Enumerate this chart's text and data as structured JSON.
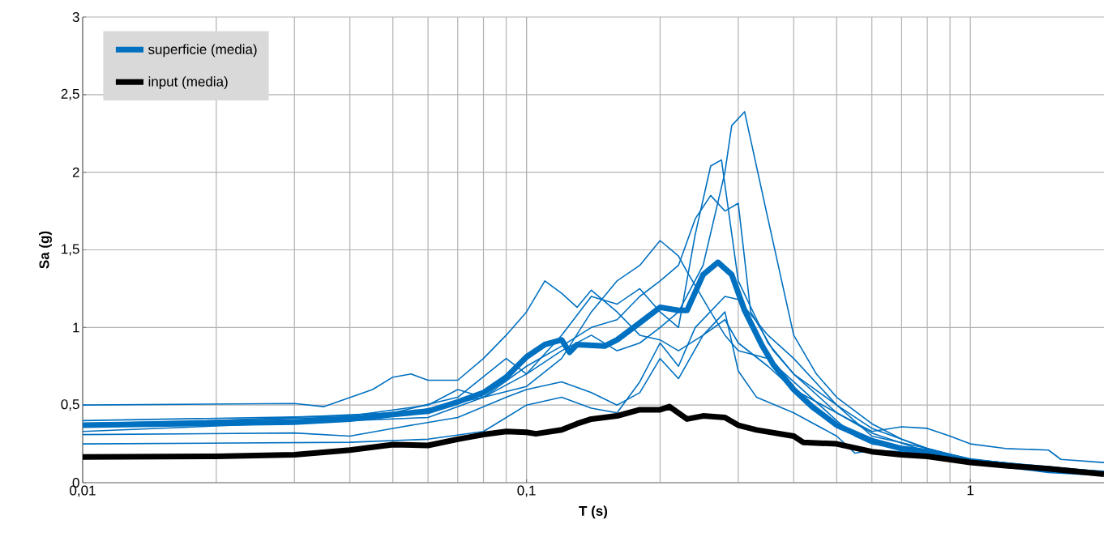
{
  "chart_data": {
    "type": "line",
    "xlabel": "T (s)",
    "ylabel": "Sa (g)",
    "log": "x",
    "grid": true,
    "legend": "top left",
    "xlim": [
      0.01,
      2
    ],
    "ylim": [
      0,
      3
    ],
    "xticks": [
      {
        "value": 0.01,
        "label": "0,01"
      },
      {
        "value": 0.1,
        "label": "0,1"
      },
      1
    ],
    "yticks": [
      0,
      {
        "value": 0.5,
        "label": "0,5"
      },
      1,
      {
        "value": 1.5,
        "label": "1,5"
      },
      2,
      {
        "value": 2.5,
        "label": "2,5"
      },
      3
    ],
    "series": [
      {
        "color": "#0070c0",
        "x": [
          0.01,
          0.03,
          0.035,
          0.045,
          0.05,
          0.055,
          0.06,
          0.07,
          0.08,
          0.09,
          0.1,
          0.11,
          0.12,
          0.13,
          0.14,
          0.16,
          0.18,
          0.2,
          0.22,
          0.25,
          0.28,
          0.3,
          0.35,
          0.4,
          0.5,
          0.6,
          0.7,
          0.8,
          0.9,
          1.0,
          1.2,
          1.5,
          1.6,
          2
        ],
        "values": [
          0.5,
          0.51,
          0.49,
          0.6,
          0.68,
          0.7,
          0.66,
          0.66,
          0.8,
          0.95,
          1.1,
          1.3,
          1.22,
          1.13,
          1.24,
          1.1,
          0.95,
          0.92,
          0.85,
          0.95,
          1.05,
          0.9,
          0.75,
          0.6,
          0.45,
          0.33,
          0.36,
          0.35,
          0.3,
          0.25,
          0.22,
          0.21,
          0.15,
          0.13
        ]
      },
      {
        "color": "#0070c0",
        "x": [
          0.01,
          0.05,
          0.08,
          0.1,
          0.12,
          0.14,
          0.16,
          0.18,
          0.2,
          0.22,
          0.25,
          0.28,
          0.29,
          0.31,
          0.35,
          0.4,
          0.45,
          0.5,
          0.6,
          0.7,
          0.8,
          1,
          1.5,
          2
        ],
        "values": [
          0.38,
          0.43,
          0.55,
          0.7,
          0.85,
          0.95,
          0.85,
          0.9,
          1.0,
          1.1,
          1.4,
          2.0,
          2.3,
          2.39,
          1.7,
          0.95,
          0.7,
          0.55,
          0.38,
          0.28,
          0.22,
          0.15,
          0.1,
          0.07
        ]
      },
      {
        "color": "#0070c0",
        "x": [
          0.01,
          0.05,
          0.07,
          0.09,
          0.1,
          0.12,
          0.14,
          0.16,
          0.18,
          0.2,
          0.22,
          0.24,
          0.26,
          0.275,
          0.3,
          0.35,
          0.4,
          0.5,
          0.6,
          0.8,
          1,
          2
        ],
        "values": [
          0.36,
          0.45,
          0.55,
          0.8,
          0.7,
          0.95,
          1.2,
          1.15,
          1.25,
          1.1,
          1.0,
          1.6,
          2.04,
          2.08,
          1.3,
          0.9,
          0.7,
          0.5,
          0.35,
          0.22,
          0.15,
          0.06
        ]
      },
      {
        "color": "#0070c0",
        "x": [
          0.01,
          0.04,
          0.06,
          0.08,
          0.1,
          0.12,
          0.14,
          0.16,
          0.18,
          0.2,
          0.22,
          0.24,
          0.26,
          0.28,
          0.3,
          0.32,
          0.36,
          0.4,
          0.5,
          0.6,
          0.8,
          1,
          2
        ],
        "values": [
          0.33,
          0.4,
          0.42,
          0.55,
          0.75,
          0.88,
          1.0,
          1.05,
          1.2,
          1.3,
          1.4,
          1.7,
          1.85,
          1.75,
          1.8,
          1.1,
          0.85,
          0.7,
          0.45,
          0.32,
          0.2,
          0.14,
          0.06
        ]
      },
      {
        "color": "#0070c0",
        "x": [
          0.01,
          0.04,
          0.06,
          0.07,
          0.08,
          0.1,
          0.12,
          0.14,
          0.16,
          0.18,
          0.2,
          0.22,
          0.23,
          0.26,
          0.28,
          0.3,
          0.35,
          0.4,
          0.5,
          0.55,
          0.6,
          0.8,
          1,
          2
        ],
        "values": [
          0.4,
          0.43,
          0.5,
          0.6,
          0.55,
          0.62,
          0.8,
          1.1,
          1.3,
          1.4,
          1.56,
          1.46,
          1.36,
          1.1,
          0.95,
          0.85,
          0.8,
          0.65,
          0.4,
          0.3,
          0.25,
          0.2,
          0.15,
          0.07
        ]
      },
      {
        "color": "#0070c0",
        "x": [
          0.01,
          0.03,
          0.04,
          0.05,
          0.07,
          0.09,
          0.1,
          0.12,
          0.14,
          0.16,
          0.18,
          0.2,
          0.22,
          0.25,
          0.28,
          0.3,
          0.33,
          0.4,
          0.5,
          0.55,
          0.6,
          0.8,
          1,
          2
        ],
        "values": [
          0.31,
          0.32,
          0.3,
          0.35,
          0.42,
          0.55,
          0.6,
          0.65,
          0.58,
          0.5,
          0.58,
          0.8,
          0.67,
          0.95,
          1.1,
          0.72,
          0.55,
          0.45,
          0.3,
          0.19,
          0.21,
          0.19,
          0.15,
          0.06
        ]
      },
      {
        "color": "#0070c0",
        "x": [
          0.01,
          0.04,
          0.06,
          0.08,
          0.1,
          0.12,
          0.14,
          0.16,
          0.18,
          0.2,
          0.22,
          0.24,
          0.28,
          0.3,
          0.35,
          0.4,
          0.5,
          0.6,
          0.8,
          1,
          2
        ],
        "values": [
          0.25,
          0.26,
          0.28,
          0.33,
          0.5,
          0.55,
          0.48,
          0.45,
          0.65,
          0.9,
          0.75,
          1.0,
          1.2,
          1.18,
          0.95,
          0.8,
          0.5,
          0.3,
          0.22,
          0.14,
          0.06
        ]
      },
      {
        "name": "superficie (media)",
        "color": "#0070c0",
        "x": [
          0.01,
          0.03,
          0.04,
          0.05,
          0.06,
          0.07,
          0.08,
          0.09,
          0.1,
          0.11,
          0.12,
          0.125,
          0.13,
          0.15,
          0.16,
          0.18,
          0.2,
          0.22,
          0.23,
          0.25,
          0.27,
          0.29,
          0.31,
          0.34,
          0.36,
          0.4,
          0.44,
          0.5,
          0.6,
          0.7,
          0.8,
          1.0,
          1.5,
          2
        ],
        "values": [
          0.37,
          0.39,
          0.41,
          0.44,
          0.46,
          0.52,
          0.58,
          0.68,
          0.81,
          0.89,
          0.92,
          0.84,
          0.89,
          0.88,
          0.92,
          1.03,
          1.13,
          1.11,
          1.11,
          1.34,
          1.42,
          1.34,
          1.11,
          0.88,
          0.76,
          0.6,
          0.49,
          0.37,
          0.27,
          0.22,
          0.2,
          0.14,
          0.08,
          0.06
        ]
      },
      {
        "name": "input (media)",
        "color": "#000000",
        "x": [
          0.01,
          0.02,
          0.03,
          0.04,
          0.05,
          0.06,
          0.07,
          0.08,
          0.09,
          0.1,
          0.105,
          0.12,
          0.13,
          0.14,
          0.16,
          0.18,
          0.2,
          0.21,
          0.23,
          0.25,
          0.28,
          0.3,
          0.33,
          0.4,
          0.42,
          0.5,
          0.6,
          0.7,
          0.8,
          1.0,
          1.2,
          1.5,
          2
        ],
        "values": [
          0.165,
          0.17,
          0.18,
          0.21,
          0.245,
          0.24,
          0.28,
          0.31,
          0.33,
          0.325,
          0.315,
          0.34,
          0.38,
          0.41,
          0.43,
          0.47,
          0.47,
          0.49,
          0.41,
          0.43,
          0.42,
          0.37,
          0.34,
          0.3,
          0.26,
          0.25,
          0.2,
          0.18,
          0.17,
          0.13,
          0.11,
          0.09,
          0.055
        ]
      }
    ]
  }
}
